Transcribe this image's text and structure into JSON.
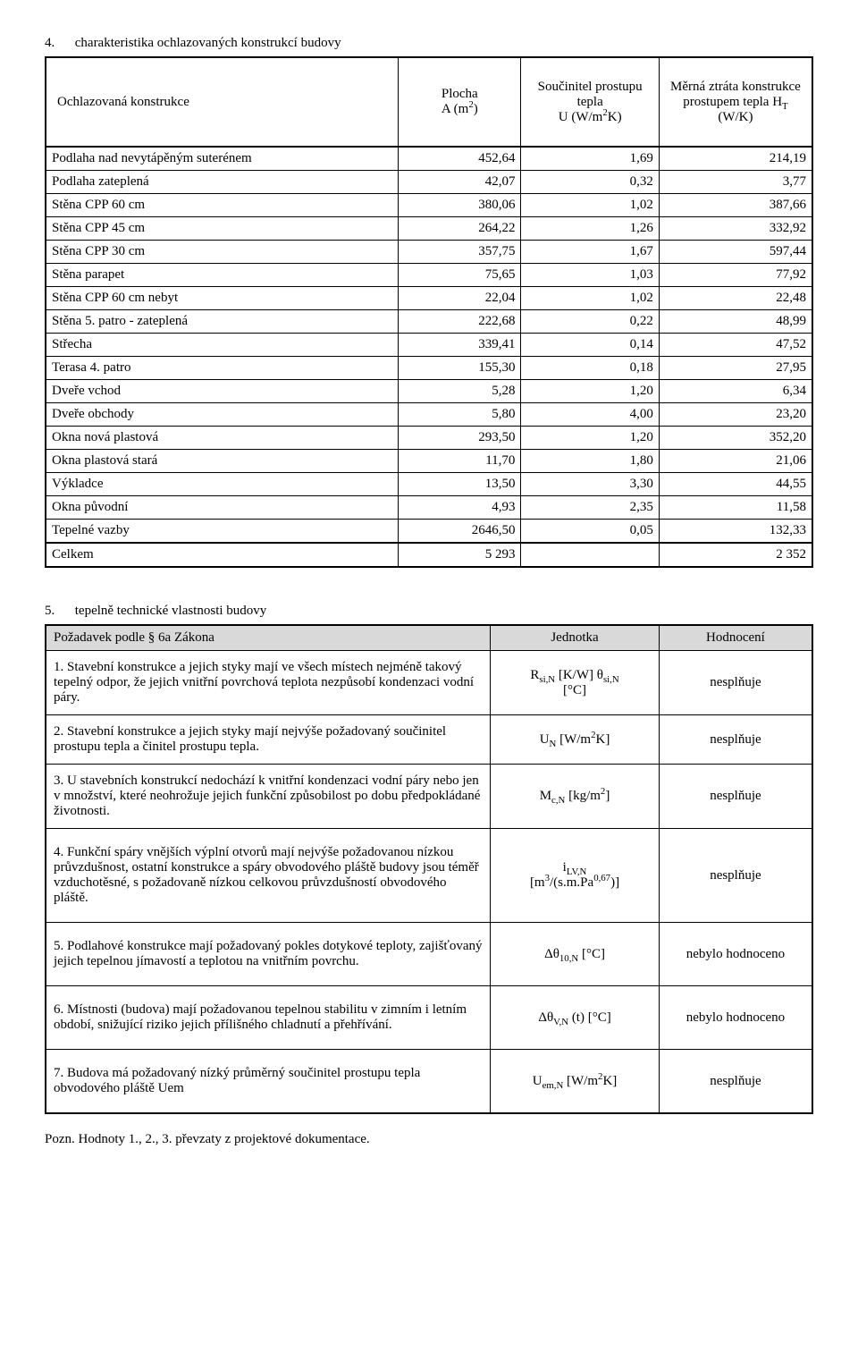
{
  "section4": {
    "number": "4.",
    "title": "charakteristika ochlazovaných konstrukcí budovy",
    "headers": {
      "construction": "Ochlazovaná konstrukce",
      "area_label": "Plocha",
      "area_unit_pre": "A (m",
      "area_unit_sup": "2",
      "area_unit_post": ")",
      "u_label": "Součinitel prostupu tepla",
      "u_unit_pre": "U (W/m",
      "u_unit_sup": "2",
      "u_unit_post": "K)",
      "loss_label1": "Měrná ztráta konstrukce",
      "loss_label2_pre": "prostupem tepla H",
      "loss_label2_sub": "T",
      "loss_unit": "(W/K)"
    },
    "rows": [
      {
        "name": "Podlaha nad nevytápěným suterénem",
        "a": "452,64",
        "u": "1,69",
        "h": "214,19"
      },
      {
        "name": "Podlaha zateplená",
        "a": "42,07",
        "u": "0,32",
        "h": "3,77"
      },
      {
        "name": "Stěna CPP 60 cm",
        "a": "380,06",
        "u": "1,02",
        "h": "387,66"
      },
      {
        "name": "Stěna CPP 45 cm",
        "a": "264,22",
        "u": "1,26",
        "h": "332,92"
      },
      {
        "name": "Stěna CPP 30 cm",
        "a": "357,75",
        "u": "1,67",
        "h": "597,44"
      },
      {
        "name": "Stěna parapet",
        "a": "75,65",
        "u": "1,03",
        "h": "77,92"
      },
      {
        "name": "Stěna CPP 60 cm nebyt",
        "a": "22,04",
        "u": "1,02",
        "h": "22,48"
      },
      {
        "name": "Stěna 5. patro - zateplená",
        "a": "222,68",
        "u": "0,22",
        "h": "48,99"
      },
      {
        "name": "Střecha",
        "a": "339,41",
        "u": "0,14",
        "h": "47,52"
      },
      {
        "name": "Terasa 4. patro",
        "a": "155,30",
        "u": "0,18",
        "h": "27,95"
      },
      {
        "name": "Dveře vchod",
        "a": "5,28",
        "u": "1,20",
        "h": "6,34"
      },
      {
        "name": "Dveře obchody",
        "a": "5,80",
        "u": "4,00",
        "h": "23,20"
      },
      {
        "name": "Okna nová plastová",
        "a": "293,50",
        "u": "1,20",
        "h": "352,20"
      },
      {
        "name": "Okna plastová stará",
        "a": "11,70",
        "u": "1,80",
        "h": "21,06"
      },
      {
        "name": "Výkladce",
        "a": "13,50",
        "u": "3,30",
        "h": "44,55"
      },
      {
        "name": "Okna původní",
        "a": "4,93",
        "u": "2,35",
        "h": "11,58"
      },
      {
        "name": "Tepelné vazby",
        "a": "2646,50",
        "u": "0,05",
        "h": "132,33"
      }
    ],
    "total": {
      "name": "Celkem",
      "a": "5 293",
      "u": "",
      "h": "2 352"
    }
  },
  "section5": {
    "number": "5.",
    "title": "tepelně technické vlastnosti budovy",
    "headers": {
      "req": "Požadavek podle § 6a Zákona",
      "unit": "Jednotka",
      "eval": "Hodnocení"
    },
    "rows": [
      {
        "text": "1. Stavební konstrukce a jejich styky mají ve všech místech nejméně takový tepelný odpor, že jejich vnitřní povrchová teplota nezpůsobí kondenzaci vodní páry.",
        "unit_html": "R<sub>si,N</sub> [K/W] θ<sub>si,N</sub><br>[°C]",
        "eval": "nesplňuje"
      },
      {
        "text": "2. Stavební konstrukce a jejich styky mají nejvýše požadovaný součinitel prostupu tepla a činitel prostupu tepla.",
        "unit_html": "U<sub>N</sub> [W/m<sup>2</sup>K]",
        "eval": "nesplňuje"
      },
      {
        "text": "3. U stavebních konstrukcí nedochází k vnitřní kondenzaci vodní páry nebo jen v množství, které neohrožuje jejich funkční způsobilost po dobu předpokládané životnosti.",
        "unit_html": "M<sub>c,N</sub> [kg/m<sup>2</sup>]",
        "eval": "nesplňuje"
      },
      {
        "text": "4. Funkční spáry vnějších výplní otvorů mají nejvýše požadovanou nízkou průvzdušnost, ostatní konstrukce a spáry obvodového pláště budovy jsou téměř vzduchotěsné, s požadovaně nízkou celkovou průvzdušností obvodového pláště.",
        "unit_html": "i<sub>LV,N</sub><br>[m<sup>3</sup>/(s.m.Pa<sup>0,67</sup>)]",
        "eval": "nesplňuje"
      },
      {
        "text": "5. Podlahové konstrukce mají požadovaný pokles dotykové teploty, zajišťovaný jejich tepelnou jímavostí a teplotou na vnitřním povrchu.",
        "unit_html": "Δθ<sub>10,N</sub> [°C]",
        "eval": "nebylo hodnoceno"
      },
      {
        "text": "6. Místnosti (budova) mají požadovanou tepelnou stabilitu v zimním i letním období, snižující riziko jejich přílišného chladnutí a přehřívání.",
        "unit_html": "Δθ<sub>V,N</sub> (t) [°C]",
        "eval": "nebylo hodnoceno"
      },
      {
        "text": "7. Budova má požadovaný nízký průměrný součinitel prostupu tepla obvodového pláště Uem",
        "unit_html": "U<sub>em,N</sub> [W/m<sup>2</sup>K]",
        "eval": "nesplňuje"
      }
    ]
  },
  "footnote": "Pozn. Hodnoty 1., 2., 3.  převzaty z projektové dokumentace."
}
